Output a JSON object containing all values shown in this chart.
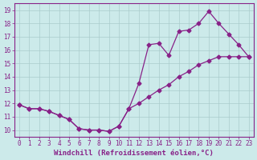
{
  "xlabel": "Windchill (Refroidissement éolien,°C)",
  "xlim": [
    -0.5,
    23.5
  ],
  "ylim": [
    9.5,
    19.5
  ],
  "xticks": [
    0,
    1,
    2,
    3,
    4,
    5,
    6,
    7,
    8,
    9,
    10,
    11,
    12,
    13,
    14,
    15,
    16,
    17,
    18,
    19,
    20,
    21,
    22,
    23
  ],
  "yticks": [
    10,
    11,
    12,
    13,
    14,
    15,
    16,
    17,
    18,
    19
  ],
  "line1_x": [
    0,
    1,
    2,
    3,
    4,
    5,
    6,
    7,
    8,
    9,
    10,
    11,
    12,
    13,
    14,
    15,
    16,
    17,
    18,
    19,
    20,
    21,
    22,
    23
  ],
  "line1_y": [
    11.9,
    11.6,
    11.6,
    11.4,
    11.1,
    10.8,
    10.1,
    10.0,
    10.0,
    9.9,
    10.3,
    11.6,
    12.0,
    12.5,
    13.0,
    13.4,
    14.0,
    14.4,
    14.9,
    15.2,
    15.5,
    15.5,
    15.5,
    15.5
  ],
  "line2_x": [
    0,
    1,
    2,
    3,
    4,
    5,
    6,
    7,
    8,
    9,
    10,
    11,
    12,
    13,
    14,
    15,
    16,
    17,
    18,
    19,
    20,
    21,
    22,
    23
  ],
  "line2_y": [
    11.9,
    11.6,
    11.6,
    11.4,
    11.1,
    10.8,
    10.1,
    10.0,
    10.0,
    9.9,
    10.3,
    11.6,
    13.5,
    16.4,
    16.5,
    15.6,
    17.4,
    17.5,
    18.0,
    18.9,
    18.0,
    17.2,
    16.4,
    15.5
  ],
  "line_color": "#882288",
  "bg_color": "#cceaea",
  "grid_color": "#aacccc",
  "marker": "D",
  "marker_size": 2.5,
  "linewidth": 0.9,
  "xlabel_fontsize": 6.5,
  "tick_fontsize": 5.5
}
